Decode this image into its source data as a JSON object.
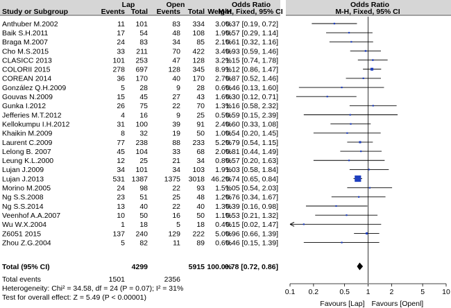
{
  "chart_data": {
    "type": "forest",
    "headers": {
      "group_lap": "Lap",
      "group_open": "Open",
      "group_or_text": "Odds Ratio",
      "group_or_plot": "Odds Ratio",
      "study": "Study or Subgroup",
      "events_lap": "Events",
      "total_lap": "Total",
      "events_open": "Events",
      "total_open": "Total",
      "weight": "Weight",
      "method_text": "M-H, Fixed, 95% CI",
      "method_plot": "M-H, Fixed, 95% CI"
    },
    "studies": [
      {
        "name": "Anthuber M.2002",
        "ev_lap": "11",
        "tot_lap": "101",
        "ev_open": "83",
        "tot_open": "334",
        "weight": "3.0%",
        "ci_text": "0.37 [0.19, 0.72]",
        "or": 0.37,
        "lo": 0.19,
        "hi": 0.72,
        "w": 3.0
      },
      {
        "name": "Baik S.H.2011",
        "ev_lap": "17",
        "tot_lap": "54",
        "ev_open": "48",
        "tot_open": "108",
        "weight": "1.9%",
        "ci_text": "0.57 [0.29, 1.14]",
        "or": 0.57,
        "lo": 0.29,
        "hi": 1.14,
        "w": 1.9
      },
      {
        "name": "Braga M.2007",
        "ev_lap": "24",
        "tot_lap": "83",
        "ev_open": "34",
        "tot_open": "85",
        "weight": "2.1%",
        "ci_text": "0.61 [0.32, 1.16]",
        "or": 0.61,
        "lo": 0.32,
        "hi": 1.16,
        "w": 2.1
      },
      {
        "name": "Cho M.S.2015",
        "ev_lap": "33",
        "tot_lap": "211",
        "ev_open": "70",
        "tot_open": "422",
        "weight": "3.4%",
        "ci_text": "0.93 [0.59, 1.46]",
        "or": 0.93,
        "lo": 0.59,
        "hi": 1.46,
        "w": 3.4
      },
      {
        "name": "CLASICC 2013",
        "ev_lap": "101",
        "tot_lap": "253",
        "ev_open": "47",
        "tot_open": "128",
        "weight": "3.2%",
        "ci_text": "1.15 [0.74, 1.78]",
        "or": 1.15,
        "lo": 0.74,
        "hi": 1.78,
        "w": 3.2
      },
      {
        "name": "COLORII 2015",
        "ev_lap": "278",
        "tot_lap": "697",
        "ev_open": "128",
        "tot_open": "345",
        "weight": "8.9%",
        "ci_text": "1.12 [0.86, 1.47]",
        "or": 1.12,
        "lo": 0.86,
        "hi": 1.47,
        "w": 8.9
      },
      {
        "name": "COREAN 2014",
        "ev_lap": "36",
        "tot_lap": "170",
        "ev_open": "40",
        "tot_open": "170",
        "weight": "2.7%",
        "ci_text": "0.87 [0.52, 1.46]",
        "or": 0.87,
        "lo": 0.52,
        "hi": 1.46,
        "w": 2.7
      },
      {
        "name": "González Q.H.2009",
        "ev_lap": "5",
        "tot_lap": "28",
        "ev_open": "9",
        "tot_open": "28",
        "weight": "0.6%",
        "ci_text": "0.46 [0.13, 1.60]",
        "or": 0.46,
        "lo": 0.13,
        "hi": 1.6,
        "w": 0.6
      },
      {
        "name": "Gouvas N.2009",
        "ev_lap": "15",
        "tot_lap": "45",
        "ev_open": "27",
        "tot_open": "43",
        "weight": "1.6%",
        "ci_text": "0.30 [0.12, 0.71]",
        "or": 0.3,
        "lo": 0.12,
        "hi": 0.71,
        "w": 1.6
      },
      {
        "name": "Gunka I.2012",
        "ev_lap": "26",
        "tot_lap": "75",
        "ev_open": "22",
        "tot_open": "70",
        "weight": "1.3%",
        "ci_text": "1.16 [0.58, 2.32]",
        "or": 1.16,
        "lo": 0.58,
        "hi": 2.32,
        "w": 1.3
      },
      {
        "name": "Jefferies M.T.2012",
        "ev_lap": "4",
        "tot_lap": "16",
        "ev_open": "9",
        "tot_open": "25",
        "weight": "0.5%",
        "ci_text": "0.59 [0.15, 2.39]",
        "or": 0.59,
        "lo": 0.15,
        "hi": 2.39,
        "w": 0.5
      },
      {
        "name": "Kellokumpu I.H.2012",
        "ev_lap": "31",
        "tot_lap": "100",
        "ev_open": "39",
        "tot_open": "91",
        "weight": "2.4%",
        "ci_text": "0.60 [0.33, 1.08]",
        "or": 0.6,
        "lo": 0.33,
        "hi": 1.08,
        "w": 2.4
      },
      {
        "name": "Khaikin M.2009",
        "ev_lap": "8",
        "tot_lap": "32",
        "ev_open": "19",
        "tot_open": "50",
        "weight": "1.0%",
        "ci_text": "0.54 [0.20, 1.45]",
        "or": 0.54,
        "lo": 0.2,
        "hi": 1.45,
        "w": 1.0
      },
      {
        "name": "Laurent C.2009",
        "ev_lap": "77",
        "tot_lap": "238",
        "ev_open": "88",
        "tot_open": "233",
        "weight": "5.2%",
        "ci_text": "0.79 [0.54, 1.15]",
        "or": 0.79,
        "lo": 0.54,
        "hi": 1.15,
        "w": 5.2
      },
      {
        "name": "Lelong B. 2007",
        "ev_lap": "45",
        "tot_lap": "104",
        "ev_open": "33",
        "tot_open": "68",
        "weight": "2.0%",
        "ci_text": "0.81 [0.44, 1.49]",
        "or": 0.81,
        "lo": 0.44,
        "hi": 1.49,
        "w": 2.0
      },
      {
        "name": "Leung K.L.2000",
        "ev_lap": "12",
        "tot_lap": "25",
        "ev_open": "21",
        "tot_open": "34",
        "weight": "0.8%",
        "ci_text": "0.57 [0.20, 1.63]",
        "or": 0.57,
        "lo": 0.2,
        "hi": 1.63,
        "w": 0.8
      },
      {
        "name": "Lujan J.2009",
        "ev_lap": "34",
        "tot_lap": "101",
        "ev_open": "34",
        "tot_open": "103",
        "weight": "1.9%",
        "ci_text": "1.03 [0.58, 1.84]",
        "or": 1.03,
        "lo": 0.58,
        "hi": 1.84,
        "w": 1.9
      },
      {
        "name": "Lujan J.2013",
        "ev_lap": "531",
        "tot_lap": "1387",
        "ev_open": "1375",
        "tot_open": "3018",
        "weight": "46.2%",
        "ci_text": "0.74 [0.65, 0.84]",
        "or": 0.74,
        "lo": 0.65,
        "hi": 0.84,
        "w": 46.2
      },
      {
        "name": "Morino M.2005",
        "ev_lap": "24",
        "tot_lap": "98",
        "ev_open": "22",
        "tot_open": "93",
        "weight": "1.5%",
        "ci_text": "1.05 [0.54, 2.03]",
        "or": 1.05,
        "lo": 0.54,
        "hi": 2.03,
        "w": 1.5
      },
      {
        "name": "Ng S.S.2008",
        "ev_lap": "23",
        "tot_lap": "51",
        "ev_open": "25",
        "tot_open": "48",
        "weight": "1.2%",
        "ci_text": "0.76 [0.34, 1.67]",
        "or": 0.76,
        "lo": 0.34,
        "hi": 1.67,
        "w": 1.2
      },
      {
        "name": "Ng S.S.2014",
        "ev_lap": "13",
        "tot_lap": "40",
        "ev_open": "22",
        "tot_open": "40",
        "weight": "1.3%",
        "ci_text": "0.39 [0.16, 0.98]",
        "or": 0.39,
        "lo": 0.16,
        "hi": 0.98,
        "w": 1.3
      },
      {
        "name": "Veenhof A.A.2007",
        "ev_lap": "10",
        "tot_lap": "50",
        "ev_open": "16",
        "tot_open": "50",
        "weight": "1.1%",
        "ci_text": "0.53 [0.21, 1.32]",
        "or": 0.53,
        "lo": 0.21,
        "hi": 1.32,
        "w": 1.1
      },
      {
        "name": "Wu W.X.2004",
        "ev_lap": "1",
        "tot_lap": "18",
        "ev_open": "5",
        "tot_open": "18",
        "weight": "0.4%",
        "ci_text": "0.15 [0.02, 1.47]",
        "or": 0.15,
        "lo": 0.02,
        "hi": 1.47,
        "w": 0.4
      },
      {
        "name": "Z6051 2015",
        "ev_lap": "137",
        "tot_lap": "240",
        "ev_open": "129",
        "tot_open": "222",
        "weight": "5.0%",
        "ci_text": "0.96 [0.66, 1.39]",
        "or": 0.96,
        "lo": 0.66,
        "hi": 1.39,
        "w": 5.0
      },
      {
        "name": "Zhou Z.G.2004",
        "ev_lap": "5",
        "tot_lap": "82",
        "ev_open": "11",
        "tot_open": "89",
        "weight": "0.6%",
        "ci_text": "0.46 [0.15, 1.39]",
        "or": 0.46,
        "lo": 0.15,
        "hi": 1.39,
        "w": 0.6
      }
    ],
    "total": {
      "label": "Total (95% CI)",
      "tot_lap": "4299",
      "tot_open": "5915",
      "weight": "100.0%",
      "ci_text": "0.78 [0.72, 0.86]",
      "or": 0.78,
      "lo": 0.72,
      "hi": 0.86
    },
    "total_events": {
      "label": "Total events",
      "ev_lap": "1501",
      "ev_open": "2356"
    },
    "heterogeneity": "Heterogeneity: Chi² = 34.58, df = 24 (P = 0.07); I² = 31%",
    "overall_effect": "Test for overall effect: Z = 5.49 (P < 0.00001)",
    "axis": {
      "scale": "log",
      "ticks": [
        0.1,
        0.2,
        0.5,
        1,
        2,
        5,
        10
      ],
      "tick_labels": [
        "0.1",
        "0.2",
        "0.5",
        "1",
        "2",
        "5",
        "10"
      ],
      "xlim": [
        0.1,
        10
      ]
    },
    "favours_left": "Favours [Lap]",
    "favours_right": "Favours [Openl]",
    "colors": {
      "marker": "#1f3fbf",
      "line": "#000000",
      "header_bg": "#d0d0d0"
    }
  }
}
